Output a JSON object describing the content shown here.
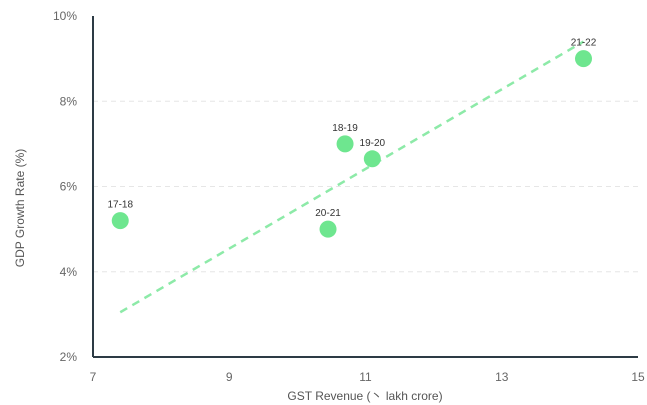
{
  "chart_data": {
    "type": "scatter",
    "xlabel": "GST Revenue (丶 lakh crore)",
    "ylabel": "GDP Growth Rate (%)",
    "xlim": [
      7,
      15
    ],
    "ylim": [
      2,
      10
    ],
    "x_ticks": [
      "7",
      "9",
      "11",
      "13",
      "15"
    ],
    "y_ticks": [
      "2%",
      "4%",
      "6%",
      "8%",
      "10%"
    ],
    "grid": "horizontal-dashed",
    "colors": {
      "points": "#6ee68f",
      "trendline": "#8deaa8",
      "axis": "#2d3b45",
      "grid": "#e6e6e6"
    },
    "points": [
      {
        "label": "17-18",
        "x": 7.4,
        "y": 5.2
      },
      {
        "label": "18-19",
        "x": 10.7,
        "y": 7.0
      },
      {
        "label": "19-20",
        "x": 11.1,
        "y": 6.65
      },
      {
        "label": "20-21",
        "x": 10.45,
        "y": 5.0
      },
      {
        "label": "21-22",
        "x": 14.2,
        "y": 9.0
      }
    ],
    "trendline": {
      "style": "dashed",
      "x": [
        7.4,
        14.2
      ],
      "y": [
        3.05,
        9.4
      ]
    }
  }
}
